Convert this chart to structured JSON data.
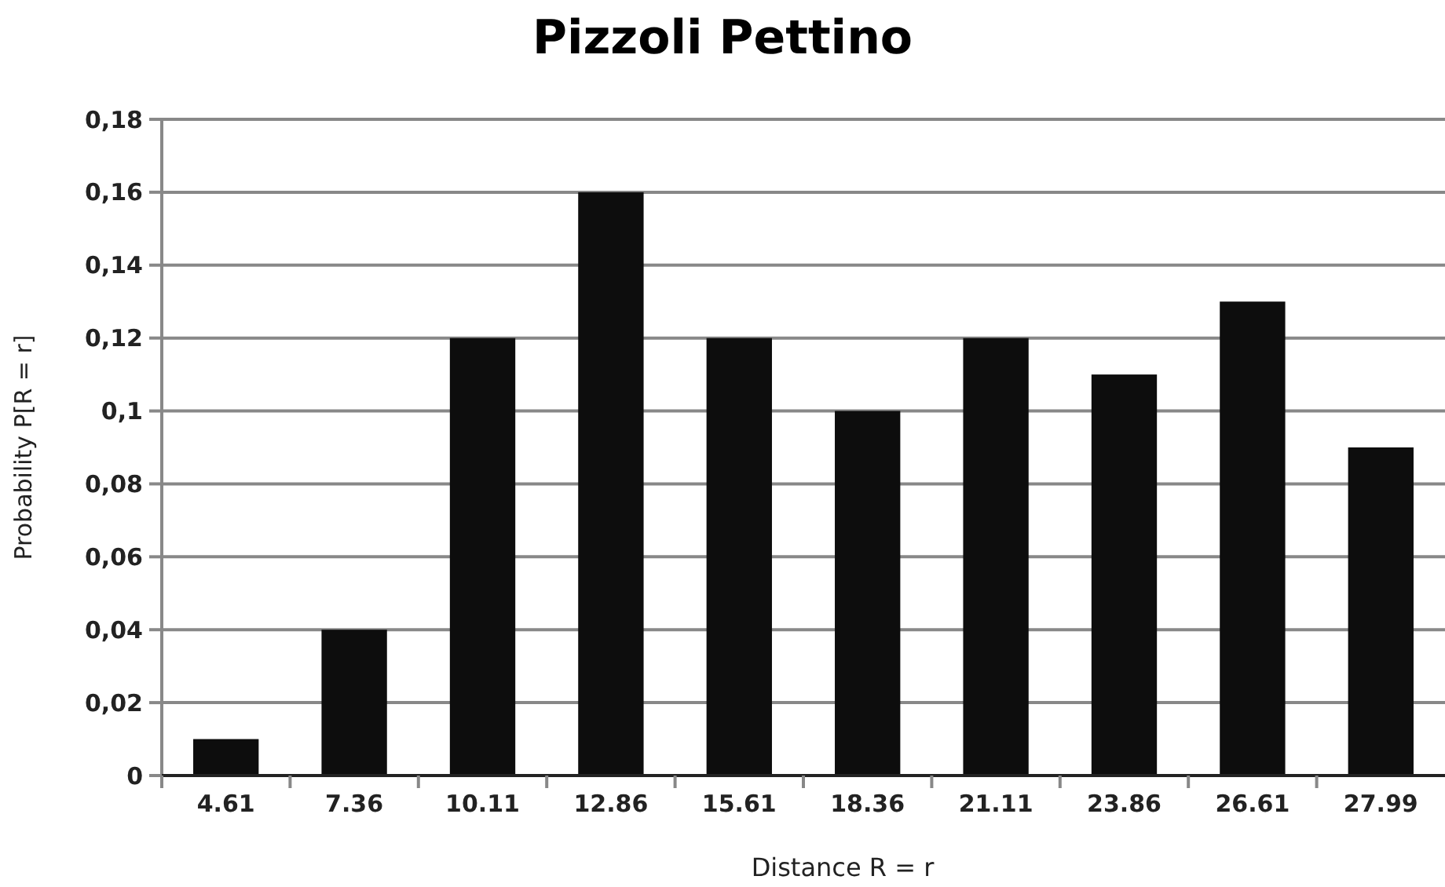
{
  "chart_data": {
    "type": "bar",
    "title": "Pizzoli Pettino",
    "xlabel": "Distance R = r",
    "ylabel": "Probability P[R = r]",
    "categories": [
      "4.61",
      "7.36",
      "10.11",
      "12.86",
      "15.61",
      "18.36",
      "21.11",
      "23.86",
      "26.61",
      "27.99"
    ],
    "values": [
      0.01,
      0.04,
      0.12,
      0.16,
      0.12,
      0.1,
      0.12,
      0.11,
      0.13,
      0.09
    ],
    "color": "#0d0d0d",
    "ylim": [
      0,
      0.18
    ],
    "yticks": [
      0,
      {
        "value": 0.02,
        "label": "0,02"
      },
      {
        "value": 0.04,
        "label": "0,04"
      },
      {
        "value": 0.06,
        "label": "0,06"
      },
      {
        "value": 0.08,
        "label": "0,08"
      },
      {
        "value": 0.1,
        "label": "0,1"
      },
      {
        "value": 0.12,
        "label": "0,12"
      },
      {
        "value": 0.14,
        "label": "0,14"
      },
      {
        "value": 0.16,
        "label": "0,16"
      },
      {
        "value": 0.18,
        "label": "0,18"
      }
    ],
    "grid": "y"
  }
}
